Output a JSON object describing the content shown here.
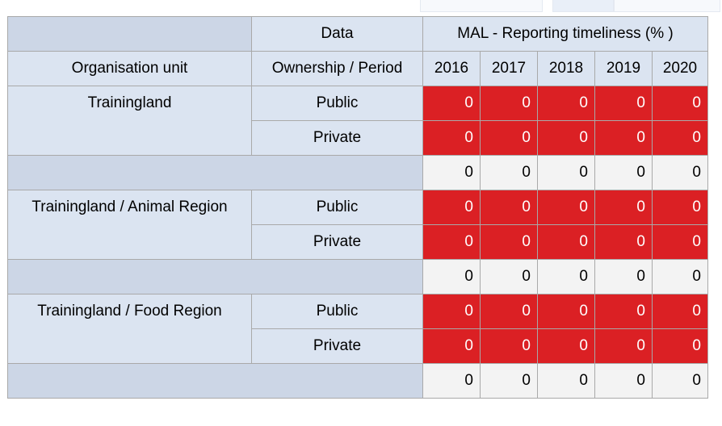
{
  "headers": {
    "data_label": "Data",
    "indicator_label": "MAL - Reporting timeliness (% )",
    "org_unit_label": "Organisation unit",
    "ownership_period_label": "Ownership / Period",
    "years": [
      "2016",
      "2017",
      "2018",
      "2019",
      "2020"
    ]
  },
  "groups": [
    {
      "org_unit": "Trainingland",
      "rows": [
        {
          "ownership": "Public",
          "values": [
            "0",
            "0",
            "0",
            "0",
            "0"
          ]
        },
        {
          "ownership": "Private",
          "values": [
            "0",
            "0",
            "0",
            "0",
            "0"
          ]
        }
      ],
      "subtotal": [
        "0",
        "0",
        "0",
        "0",
        "0"
      ]
    },
    {
      "org_unit": "Trainingland / Animal Region",
      "rows": [
        {
          "ownership": "Public",
          "values": [
            "0",
            "0",
            "0",
            "0",
            "0"
          ]
        },
        {
          "ownership": "Private",
          "values": [
            "0",
            "0",
            "0",
            "0",
            "0"
          ]
        }
      ],
      "subtotal": [
        "0",
        "0",
        "0",
        "0",
        "0"
      ]
    },
    {
      "org_unit": "Trainingland / Food Region",
      "rows": [
        {
          "ownership": "Public",
          "values": [
            "0",
            "0",
            "0",
            "0",
            "0"
          ]
        },
        {
          "ownership": "Private",
          "values": [
            "0",
            "0",
            "0",
            "0",
            "0"
          ]
        }
      ],
      "subtotal": [
        "0",
        "0",
        "0",
        "0",
        "0"
      ]
    }
  ],
  "colors": {
    "low_value_fill": "#db2024",
    "header_fill": "#dbe4f1",
    "subtotal_fill": "#ccd6e6"
  }
}
